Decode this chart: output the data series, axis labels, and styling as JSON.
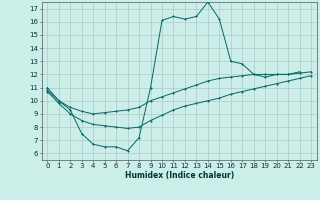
{
  "xlabel": "Humidex (Indice chaleur)",
  "ylabel": "",
  "bg_color": "#cceee8",
  "grid_color": "#b0c8c8",
  "line_color": "#006666",
  "xlim": [
    -0.5,
    23.5
  ],
  "ylim": [
    5.5,
    17.5
  ],
  "xticks": [
    0,
    1,
    2,
    3,
    4,
    5,
    6,
    7,
    8,
    9,
    10,
    11,
    12,
    13,
    14,
    15,
    16,
    17,
    18,
    19,
    20,
    21,
    22,
    23
  ],
  "yticks": [
    6,
    7,
    8,
    9,
    10,
    11,
    12,
    13,
    14,
    15,
    16,
    17
  ],
  "line1_x": [
    0,
    1,
    2,
    3,
    4,
    5,
    6,
    7,
    8,
    9,
    10,
    11,
    12,
    13,
    14,
    15,
    16,
    17,
    18,
    19,
    20,
    21,
    22
  ],
  "line1_y": [
    11.0,
    10.0,
    9.3,
    7.5,
    6.7,
    6.5,
    6.5,
    6.2,
    7.2,
    11.0,
    16.1,
    16.4,
    16.2,
    16.4,
    17.5,
    16.2,
    13.0,
    12.8,
    12.0,
    11.8,
    12.0,
    12.0,
    12.2
  ],
  "line2_x": [
    0,
    1,
    2,
    3,
    4,
    5,
    6,
    7,
    8,
    9,
    10,
    11,
    12,
    13,
    14,
    15,
    16,
    17,
    18,
    19,
    20,
    21,
    22,
    23
  ],
  "line2_y": [
    10.8,
    10.0,
    9.5,
    9.2,
    9.0,
    9.1,
    9.2,
    9.3,
    9.5,
    10.0,
    10.3,
    10.6,
    10.9,
    11.2,
    11.5,
    11.7,
    11.8,
    11.9,
    12.0,
    12.0,
    12.0,
    12.0,
    12.1,
    12.2
  ],
  "line3_x": [
    0,
    1,
    2,
    3,
    4,
    5,
    6,
    7,
    8,
    9,
    10,
    11,
    12,
    13,
    14,
    15,
    16,
    17,
    18,
    19,
    20,
    21,
    22,
    23
  ],
  "line3_y": [
    10.7,
    9.8,
    9.0,
    8.5,
    8.2,
    8.1,
    8.0,
    7.9,
    8.0,
    8.5,
    8.9,
    9.3,
    9.6,
    9.8,
    10.0,
    10.2,
    10.5,
    10.7,
    10.9,
    11.1,
    11.3,
    11.5,
    11.7,
    11.9
  ]
}
